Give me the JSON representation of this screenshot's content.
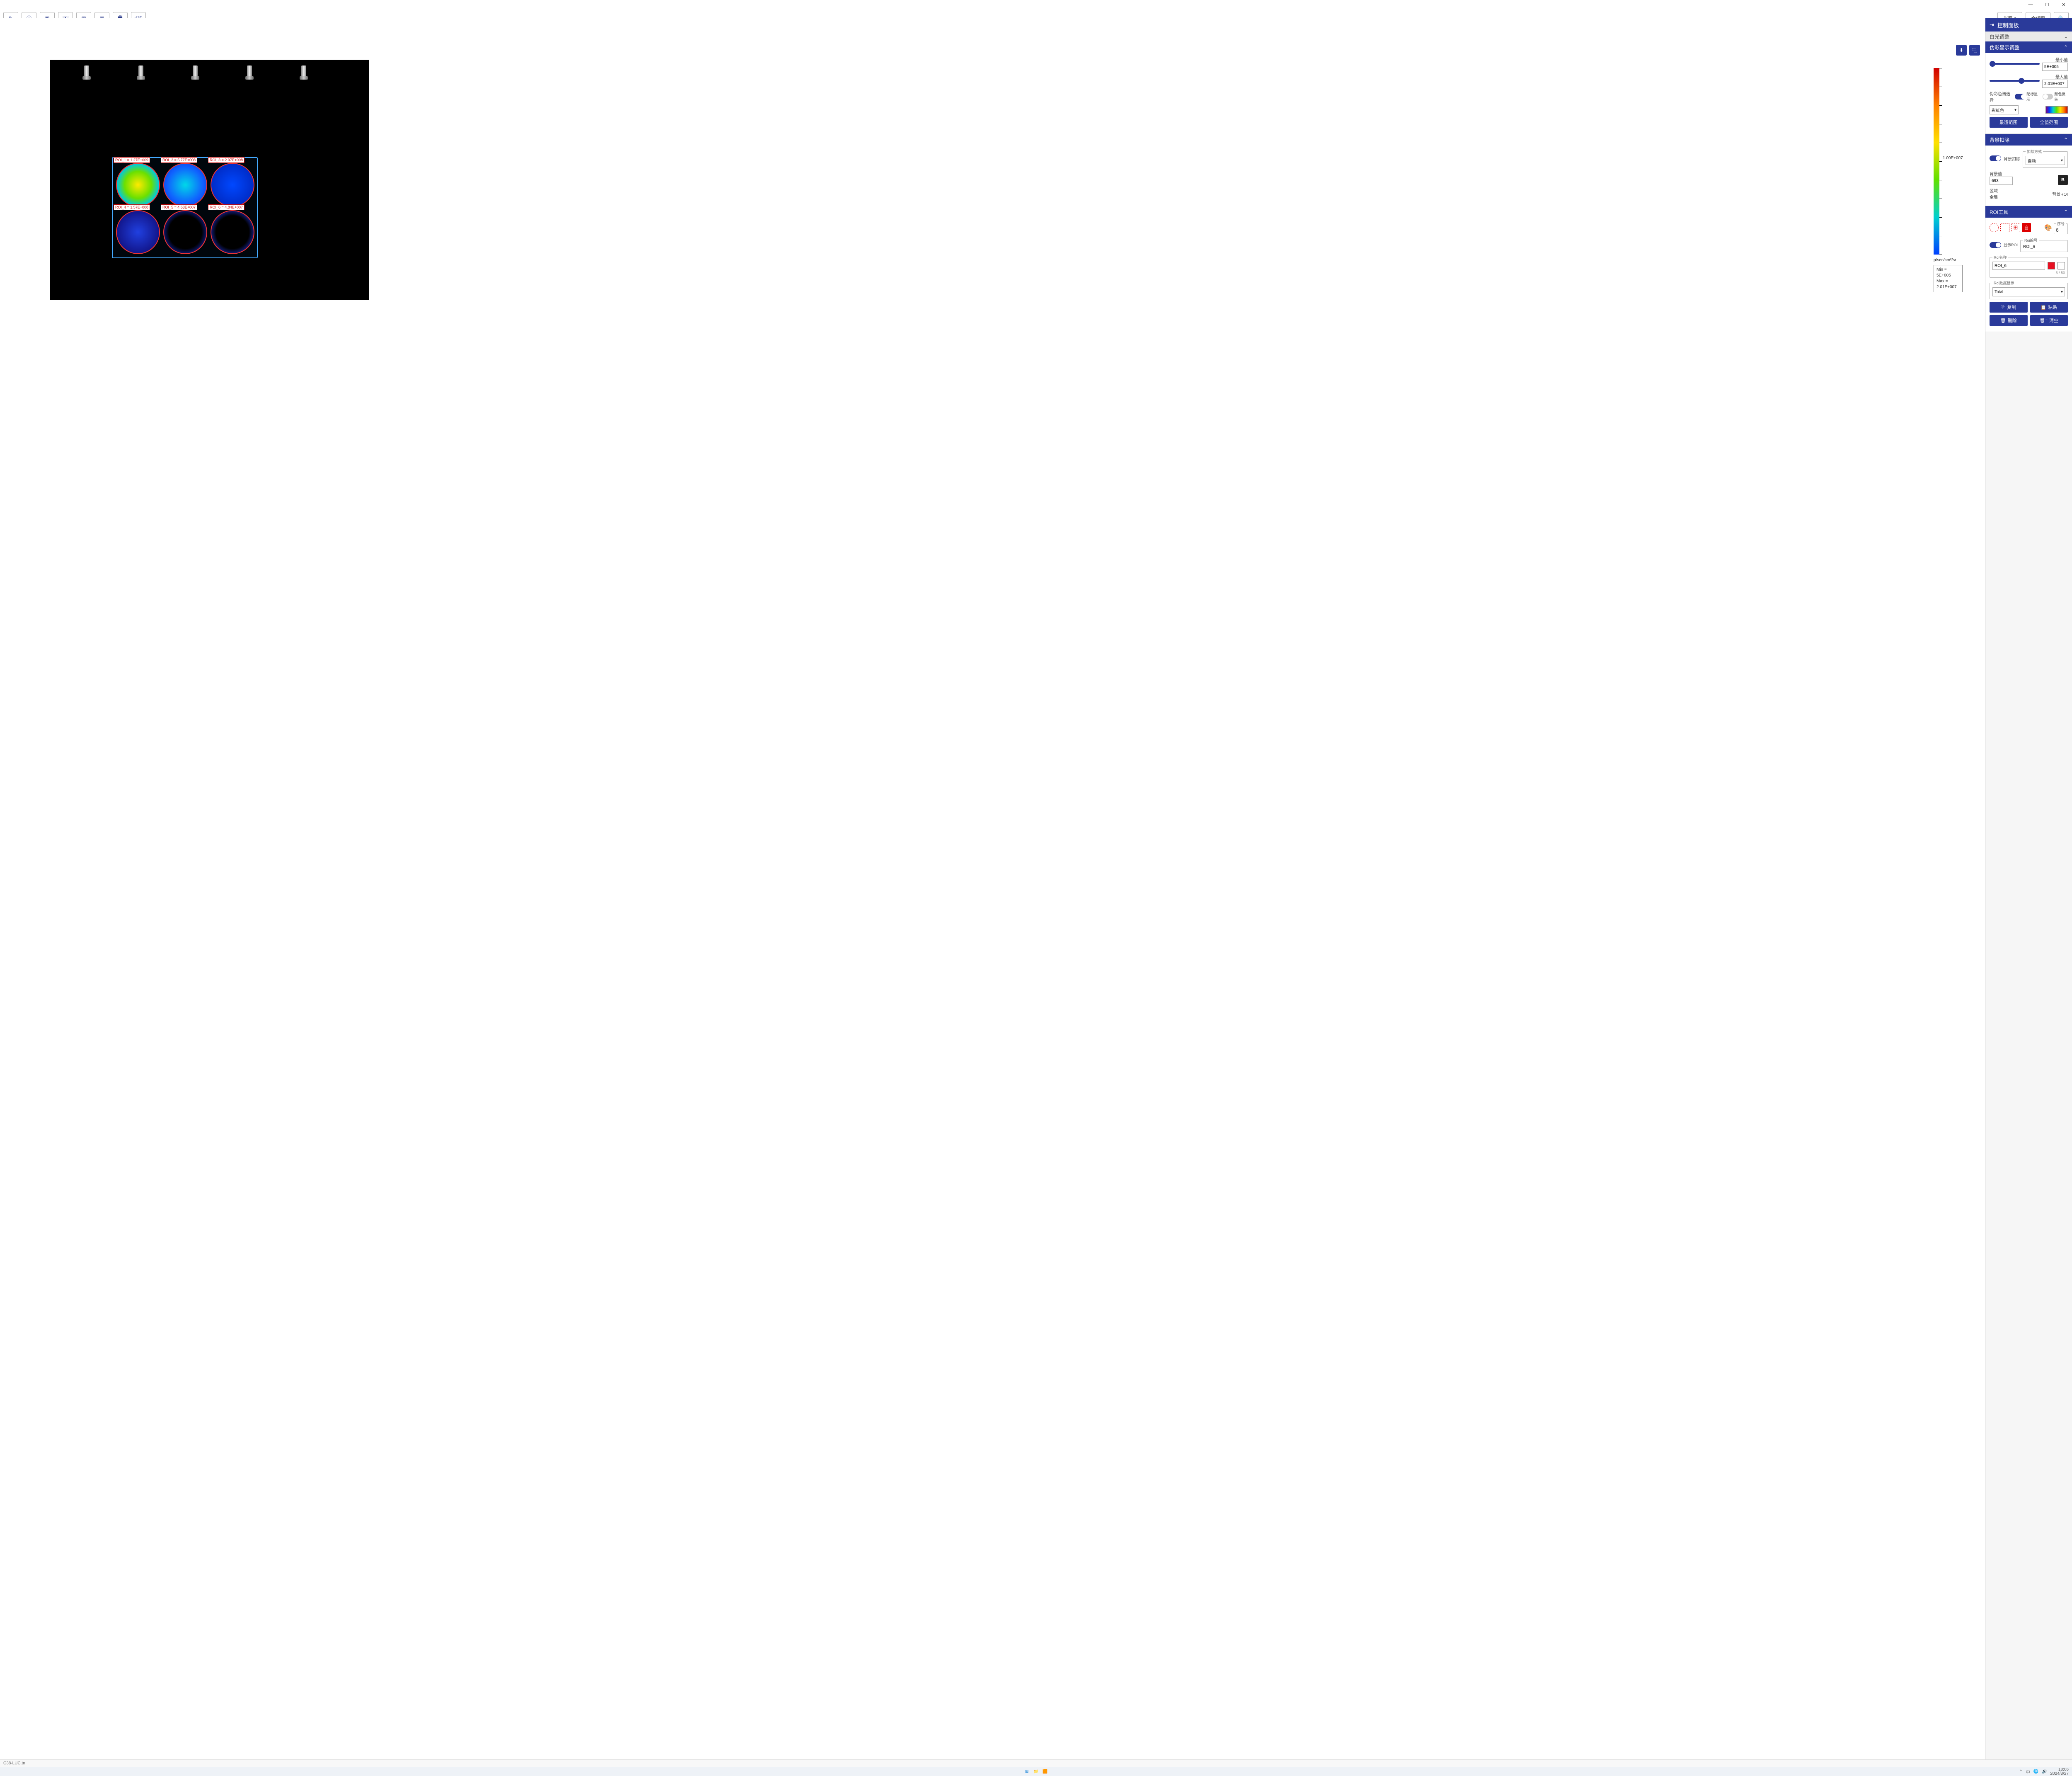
{
  "titlebar": {
    "filename": "C38-LUC.tn"
  },
  "window_controls": {
    "min": "—",
    "max": "☐",
    "close": "✕"
  },
  "toolbar": {
    "icons": [
      "edit",
      "info",
      "layout",
      "image",
      "columns",
      "grid",
      "print",
      "3d"
    ],
    "light_dropdown": "光强",
    "composite_btn": "合成图",
    "search_btn": "🔍"
  },
  "download_icons": [
    "⬇",
    "⿻"
  ],
  "scale": {
    "unit": "p/sec/cm²/sr",
    "mid_label": "1.00E+007",
    "min_label": "Min  =  5E+005",
    "max_label": "Max = 2.01E+007",
    "ticks": 11
  },
  "plate": {
    "nozzle_positions_pct": [
      10,
      27,
      44,
      61,
      78
    ],
    "wells": [
      {
        "id": "ROI_1",
        "value": "1.27E+009",
        "row": 0,
        "col": 0,
        "fill": "radial-gradient(circle,#ffea00 0%,#6be000 45%,#00c8e0 70%,#0040ff 100%)"
      },
      {
        "id": "ROI_2",
        "value": "5.77E+008",
        "row": 0,
        "col": 1,
        "fill": "radial-gradient(circle,#00d8e8 0%,#1060ff 60%,#0030d0 100%)"
      },
      {
        "id": "ROI_3",
        "value": "2.97E+008",
        "row": 0,
        "col": 2,
        "fill": "radial-gradient(circle,#0048ff 0%,#0028c0 80%)"
      },
      {
        "id": "ROI_4",
        "value": "1.57E+008",
        "row": 1,
        "col": 0,
        "fill": "radial-gradient(circle,#2040e0 0%,#101080 80%,#000 100%)"
      },
      {
        "id": "ROI_5",
        "value": "4.63E+007",
        "row": 1,
        "col": 1,
        "fill": "radial-gradient(circle,#000 0%,#000 55%,#1020a0 80%,#000 100%)"
      },
      {
        "id": "ROI_6",
        "value": "4.84E+007",
        "row": 1,
        "col": 2,
        "fill": "radial-gradient(circle,#000 0%,#000 55%,#1828b0 80%,#000 100%)"
      }
    ]
  },
  "panel": {
    "header": "控制面板",
    "section_light": "白光调整",
    "pseudo": {
      "title": "伪彩显示调整",
      "min_label": "最小值",
      "min_value": "5E+005",
      "max_label": "最大值",
      "max_value": "2.01E+007",
      "palette_label": "伪彩色谱选择",
      "scale_show_label": "配标显示",
      "color_invert_label": "颜色反转",
      "palette_name": "彩虹色",
      "best_btn": "最适范围",
      "full_btn": "全值范围"
    },
    "bg": {
      "title": "背景扣除",
      "toggle_label": "背景扣除",
      "method_legend": "扣除方式",
      "method": "自动",
      "bgval_label": "背景值",
      "bgval": "693",
      "region_label": "区域",
      "region_value": "全局",
      "bgroi_label": "背景ROI",
      "bgroi_btn": "B"
    },
    "roi": {
      "title": "ROI工具",
      "auto_label": "自",
      "seq_legend": "序号",
      "seq": "6",
      "show_roi_label": "显示ROI",
      "roi_code_legend": "Roi编号",
      "roi_code": "ROI_6",
      "roi_name_legend": "Roi名称",
      "roi_name": "ROI_6",
      "roi_name_count": "5 / 50",
      "roi_color": "#e81123",
      "data_legend": "Roi数据显示",
      "data_mode": "Total",
      "copy": "复制",
      "paste": "粘贴",
      "delete": "删除",
      "clear": "清空"
    }
  },
  "taskbar": {
    "tray_lang": "中",
    "time": "18:06",
    "date": "2024/3/27"
  }
}
